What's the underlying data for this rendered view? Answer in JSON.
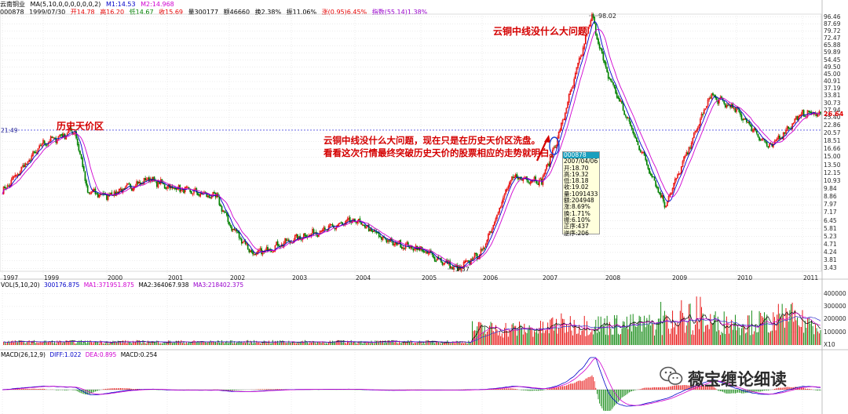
{
  "header": {
    "line1": {
      "name": "云南铜业",
      "ma_def": "MA(5,10,0,0,0,0,0,0,2)",
      "m1": "M1:14.53",
      "m2": "M2:14.968"
    },
    "line2": {
      "code": "000878",
      "date": "1999/07/30",
      "open": "开14.78",
      "high": "高16.20",
      "low": "低14.67",
      "close": "收15.69",
      "volume": "量300177",
      "amount": "额46660",
      "turnover": "换2.38%",
      "amplitude": "振11.06%",
      "change": "涨(0.95)6.45%",
      "index": "指数(55.14)1.38%"
    }
  },
  "annotations": {
    "history_zone": "历史天价区",
    "top_note": "云铜中线没什么大问题",
    "main_line1": "云铜中线没什么大问题，现在只是在历史天价区洗盘。",
    "main_line2": "看看这次行情最终突破历史天价的股票相应的走势就明白。"
  },
  "popup": {
    "code": "000878",
    "date": "2007/04/06",
    "open": "开:18.70",
    "high": "高:19.32",
    "low": "低:18.18",
    "close": "收:19.02",
    "volume": "量:1091433",
    "amount": "额:204948",
    "change": "涨:8.69%",
    "turnover": "换:1.71%",
    "amplitude": "振:6.10%",
    "pos": "正序:437",
    "rev": "逆序:206"
  },
  "price_axis": {
    "ticks": [
      "96.46",
      "87.69",
      "79.72",
      "72.47",
      "65.88",
      "59.89",
      "54.45",
      "49.50",
      "45.00",
      "40.91",
      "37.19",
      "33.81",
      "30.73",
      "27.94",
      "25.40",
      "22.86",
      "20.57",
      "18.51",
      "16.66",
      "15.00",
      "13.50",
      "12.15",
      "10.93",
      "9.84",
      "8.86",
      "7.97",
      "7.17",
      "6.45",
      "5.81",
      "5.23",
      "4.71",
      "4.24",
      "3.81",
      "3.43"
    ],
    "current_price": "26.64",
    "ref_line_price": "21.49"
  },
  "price_labels": {
    "peak": "98.02",
    "low": "3.37"
  },
  "years": [
    "1997",
    "1999",
    "2000",
    "2001",
    "2002",
    "2003",
    "2004",
    "2005",
    "2006",
    "2007",
    "2008",
    "2009",
    "2010",
    "2011"
  ],
  "volume_panel": {
    "header": {
      "def": "VOL(5,10,20)",
      "vol": "300176.875",
      "ma1": "MA1:371951.875",
      "ma2": "MA2:364067.938",
      "ma3": "MA3:218402.375"
    },
    "ticks": [
      "400000",
      "300000",
      "200000",
      "100000",
      "X10"
    ]
  },
  "macd_panel": {
    "header": {
      "def": "MACD(26,12,9)",
      "diff": "DIFF:1.022",
      "dea": "DEA:0.895",
      "macd": "MACD:0.254"
    }
  },
  "watermark": "薇宝缠论细读",
  "colors": {
    "bull": "#e60000",
    "bear": "#008000",
    "ma_fast": "#d000d0",
    "ma_slow": "#0000c8",
    "ref_line": "#5050e0",
    "annotation": "#d40000"
  },
  "chart_data": {
    "type": "candlestick",
    "scale": "log",
    "ylim": [
      3.37,
      98.02
    ],
    "x_years": [
      "1997",
      "1999",
      "2000",
      "2001",
      "2002",
      "2003",
      "2004",
      "2005",
      "2006",
      "2007",
      "2008",
      "2009",
      "2010",
      "2011"
    ],
    "price_path": [
      {
        "t": "1997",
        "p": 9.5
      },
      {
        "t": "1998",
        "p": 13.0
      },
      {
        "t": "1999",
        "p": 18.0
      },
      {
        "t": "1999.5",
        "p": 21.49
      },
      {
        "t": "1999.7",
        "p": 9.5
      },
      {
        "t": "2000",
        "p": 9.0
      },
      {
        "t": "2000.7",
        "p": 11.2
      },
      {
        "t": "2001",
        "p": 10.2
      },
      {
        "t": "2001.8",
        "p": 8.8
      },
      {
        "t": "2002",
        "p": 6.2
      },
      {
        "t": "2002.4",
        "p": 4.1
      },
      {
        "t": "2003",
        "p": 5.0
      },
      {
        "t": "2004",
        "p": 6.5
      },
      {
        "t": "2004.5",
        "p": 4.9
      },
      {
        "t": "2005",
        "p": 4.4
      },
      {
        "t": "2005.6",
        "p": 3.37
      },
      {
        "t": "2006",
        "p": 4.3
      },
      {
        "t": "2006.5",
        "p": 11.5
      },
      {
        "t": "2007",
        "p": 11.0
      },
      {
        "t": "2007.25",
        "p": 19.02
      },
      {
        "t": "2007.8",
        "p": 98.02
      },
      {
        "t": "2008",
        "p": 50.0
      },
      {
        "t": "2008.5",
        "p": 18.0
      },
      {
        "t": "2008.9",
        "p": 8.0
      },
      {
        "t": "2009",
        "p": 9.5
      },
      {
        "t": "2009.6",
        "p": 34.0
      },
      {
        "t": "2010",
        "p": 28.0
      },
      {
        "t": "2010.5",
        "p": 17.0
      },
      {
        "t": "2011",
        "p": 27.0
      },
      {
        "t": "2011.3",
        "p": 26.64
      }
    ],
    "volume_ma3": 218402.375,
    "volume_peak": 420000,
    "macd": {
      "diff": 1.022,
      "dea": 0.895,
      "macd": 0.254,
      "peak_diff": 16
    }
  }
}
